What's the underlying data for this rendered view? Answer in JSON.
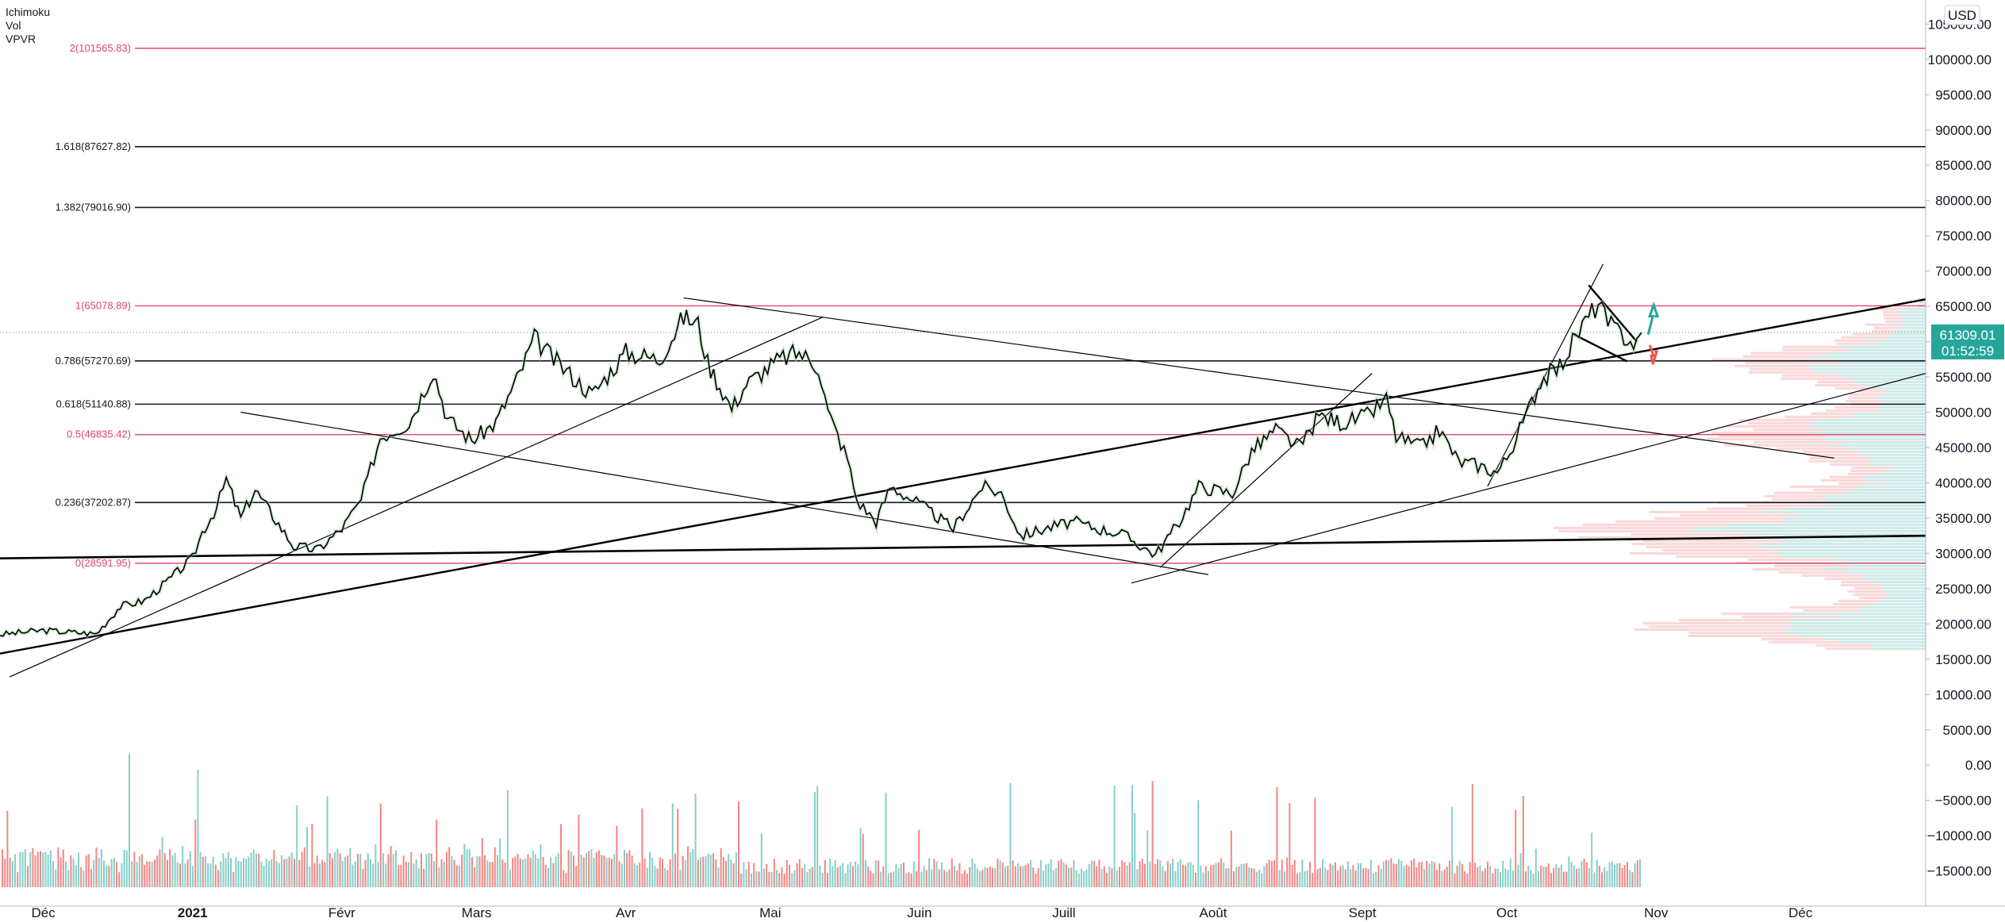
{
  "indicators": [
    "Ichimoku",
    "Vol",
    "VPVR"
  ],
  "currency_button": "USD",
  "price_badge": {
    "price": "61309.01",
    "countdown": "01:52:59"
  },
  "colors": {
    "fib_red": "#e0436e",
    "fib_black": "#131722",
    "badge_bg": "#26a69a",
    "vol_up": "#26a69a",
    "vol_down": "#ef5350",
    "vpvr_up": "#26a69a",
    "vpvr_down": "#ef5350"
  },
  "chart_data": {
    "type": "line",
    "title": "",
    "x_axis": {
      "labels": [
        "Déc",
        "2021",
        "Févr",
        "Mars",
        "Avr",
        "Mai",
        "Juin",
        "Juill",
        "Août",
        "Sept",
        "Oct",
        "Nov",
        "Déc"
      ],
      "label_dates": [
        "2020-12-01",
        "2021-01-01",
        "2021-02-01",
        "2021-03-01",
        "2021-04-01",
        "2021-05-01",
        "2021-06-01",
        "2021-07-01",
        "2021-08-01",
        "2021-09-01",
        "2021-10-01",
        "2021-11-01",
        "2021-12-01"
      ],
      "range": [
        "2020-11-22",
        "2021-12-27"
      ]
    },
    "y_axis": {
      "ticks": [
        "105000.00",
        "100000.00",
        "95000.00",
        "90000.00",
        "85000.00",
        "80000.00",
        "75000.00",
        "70000.00",
        "65000.00",
        "60000.00",
        "55000.00",
        "50000.00",
        "45000.00",
        "40000.00",
        "35000.00",
        "30000.00",
        "25000.00",
        "20000.00",
        "15000.00",
        "10000.00",
        "5000.00",
        "0.00",
        "−5000.00",
        "−10000.00",
        "−15000.00"
      ],
      "range": [
        -16500,
        106500
      ]
    },
    "fib_levels": [
      {
        "label": "2(101565.83)",
        "value": 101565.83,
        "color": "red"
      },
      {
        "label": "1.618(87627.82)",
        "value": 87627.82,
        "color": "black"
      },
      {
        "label": "1.382(79016.90)",
        "value": 79016.9,
        "color": "black"
      },
      {
        "label": "1(65078.89)",
        "value": 65078.89,
        "color": "red"
      },
      {
        "label": "0.786(57270.69)",
        "value": 57270.69,
        "color": "black"
      },
      {
        "label": "0.618(51140.88)",
        "value": 51140.88,
        "color": "black"
      },
      {
        "label": "0.5(46835.42)",
        "value": 46835.42,
        "color": "red"
      },
      {
        "label": "0.236(37202.87)",
        "value": 37202.87,
        "color": "black"
      },
      {
        "label": "0(28591.95)",
        "value": 28591.95,
        "color": "red"
      }
    ],
    "series": [
      {
        "name": "",
        "points": [
          [
            "2020-11-22",
            18500
          ],
          [
            "2020-12-01",
            19100
          ],
          [
            "2020-12-05",
            18900
          ],
          [
            "2020-12-12",
            18600
          ],
          [
            "2020-12-17",
            22500
          ],
          [
            "2020-12-22",
            23300
          ],
          [
            "2020-12-27",
            26200
          ],
          [
            "2021-01-01",
            29300
          ],
          [
            "2021-01-03",
            33000
          ],
          [
            "2021-01-06",
            36500
          ],
          [
            "2021-01-08",
            40500
          ],
          [
            "2021-01-11",
            35000
          ],
          [
            "2021-01-14",
            39000
          ],
          [
            "2021-01-17",
            36000
          ],
          [
            "2021-01-22",
            31000
          ],
          [
            "2021-01-27",
            30500
          ],
          [
            "2021-02-01",
            33500
          ],
          [
            "2021-02-05",
            37500
          ],
          [
            "2021-02-09",
            46500
          ],
          [
            "2021-02-15",
            48500
          ],
          [
            "2021-02-20",
            56000
          ],
          [
            "2021-02-23",
            49000
          ],
          [
            "2021-02-28",
            46000
          ],
          [
            "2021-03-05",
            48500
          ],
          [
            "2021-03-10",
            55500
          ],
          [
            "2021-03-13",
            60500
          ],
          [
            "2021-03-17",
            57500
          ],
          [
            "2021-03-25",
            52500
          ],
          [
            "2021-04-01",
            58500
          ],
          [
            "2021-04-08",
            57500
          ],
          [
            "2021-04-13",
            63500
          ],
          [
            "2021-04-16",
            62500
          ],
          [
            "2021-04-18",
            57000
          ],
          [
            "2021-04-23",
            50500
          ],
          [
            "2021-04-26",
            54000
          ],
          [
            "2021-05-03",
            57500
          ],
          [
            "2021-05-07",
            58500
          ],
          [
            "2021-05-11",
            56500
          ],
          [
            "2021-05-13",
            50000
          ],
          [
            "2021-05-17",
            43500
          ],
          [
            "2021-05-19",
            37500
          ],
          [
            "2021-05-23",
            34500
          ],
          [
            "2021-05-26",
            39500
          ],
          [
            "2021-06-01",
            37000
          ],
          [
            "2021-06-08",
            33500
          ],
          [
            "2021-06-14",
            39500
          ],
          [
            "2021-06-18",
            38500
          ],
          [
            "2021-06-22",
            32500
          ],
          [
            "2021-06-27",
            33500
          ],
          [
            "2021-07-03",
            34500
          ],
          [
            "2021-07-08",
            33500
          ],
          [
            "2021-07-13",
            32800
          ],
          [
            "2021-07-20",
            29800
          ],
          [
            "2021-07-25",
            34500
          ],
          [
            "2021-07-29",
            39500
          ],
          [
            "2021-08-05",
            38500
          ],
          [
            "2021-08-09",
            44500
          ],
          [
            "2021-08-14",
            47500
          ],
          [
            "2021-08-19",
            45000
          ],
          [
            "2021-08-23",
            49500
          ],
          [
            "2021-08-28",
            48500
          ],
          [
            "2021-09-02",
            49500
          ],
          [
            "2021-09-06",
            51800
          ],
          [
            "2021-09-08",
            46500
          ],
          [
            "2021-09-13",
            45000
          ],
          [
            "2021-09-17",
            47500
          ],
          [
            "2021-09-21",
            43000
          ],
          [
            "2021-09-25",
            42500
          ],
          [
            "2021-09-29",
            41500
          ],
          [
            "2021-10-01",
            43500
          ],
          [
            "2021-10-05",
            49500
          ],
          [
            "2021-10-08",
            54500
          ],
          [
            "2021-10-12",
            56500
          ],
          [
            "2021-10-16",
            61500
          ],
          [
            "2021-10-20",
            65500
          ],
          [
            "2021-10-22",
            62500
          ],
          [
            "2021-10-26",
            60500
          ],
          [
            "2021-10-28",
            59500
          ],
          [
            "2021-10-29",
            61309
          ]
        ]
      }
    ],
    "volume": {
      "name": "Vol",
      "range": [
        0,
        20000
      ]
    },
    "grid": false,
    "legend": "top-left"
  }
}
